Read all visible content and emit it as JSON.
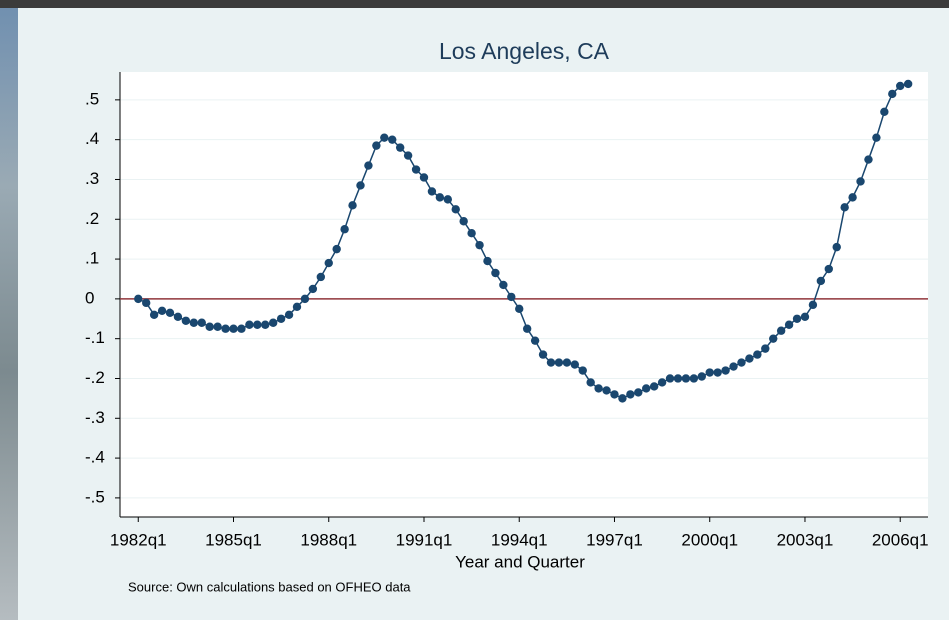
{
  "chart_data": {
    "type": "line",
    "title": "Los Angeles, CA",
    "x_label": "Year and Quarter",
    "note": "Source: Own calculations based on OFHEO data",
    "x": [
      88,
      89,
      90,
      91,
      92,
      93,
      94,
      95,
      96,
      97,
      98,
      99,
      100,
      101,
      102,
      103,
      104,
      105,
      106,
      107,
      108,
      109,
      110,
      111,
      112,
      113,
      114,
      115,
      116,
      117,
      118,
      119,
      120,
      121,
      122,
      123,
      124,
      125,
      126,
      127,
      128,
      129,
      130,
      131,
      132,
      133,
      134,
      135,
      136,
      137,
      138,
      139,
      140,
      141,
      142,
      143,
      144,
      145,
      146,
      147,
      148,
      149,
      150,
      151,
      152,
      153,
      154,
      155,
      156,
      157,
      158,
      159,
      160,
      161,
      162,
      163,
      164,
      165,
      166,
      167,
      168,
      169,
      170,
      171,
      172,
      173,
      174,
      175,
      176,
      177,
      178,
      179,
      180,
      181,
      182,
      183,
      184,
      185
    ],
    "series": [
      {
        "name": "Los Angeles, CA",
        "color": "#1a476f",
        "values": [
          0,
          -0.01,
          -0.04,
          -0.03,
          -0.035,
          -0.045,
          -0.055,
          -0.06,
          -0.06,
          -0.07,
          -0.07,
          -0.075,
          -0.075,
          -0.075,
          -0.065,
          -0.065,
          -0.065,
          -0.06,
          -0.05,
          -0.04,
          -0.02,
          0.0,
          0.025,
          0.055,
          0.09,
          0.125,
          0.175,
          0.235,
          0.285,
          0.335,
          0.385,
          0.405,
          0.4,
          0.38,
          0.36,
          0.325,
          0.305,
          0.27,
          0.255,
          0.25,
          0.225,
          0.195,
          0.165,
          0.135,
          0.095,
          0.065,
          0.035,
          0.005,
          -0.025,
          -0.075,
          -0.105,
          -0.14,
          -0.16,
          -0.16,
          -0.16,
          -0.165,
          -0.18,
          -0.21,
          -0.225,
          -0.23,
          -0.24,
          -0.25,
          -0.24,
          -0.235,
          -0.225,
          -0.22,
          -0.21,
          -0.2,
          -0.2,
          -0.2,
          -0.2,
          -0.195,
          -0.185,
          -0.185,
          -0.18,
          -0.17,
          -0.16,
          -0.15,
          -0.14,
          -0.125,
          -0.1,
          -0.08,
          -0.065,
          -0.05,
          -0.045,
          -0.015,
          0.045,
          0.075,
          0.13,
          0.23,
          0.255,
          0.295,
          0.35,
          0.405,
          0.47,
          0.515,
          0.535,
          0.54
        ]
      }
    ],
    "xlim": [
      85.7,
      187.5
    ],
    "xticks": [
      {
        "value": 88,
        "label": "1982q1"
      },
      {
        "value": 100,
        "label": "1985q1"
      },
      {
        "value": 112,
        "label": "1988q1"
      },
      {
        "value": 124,
        "label": "1991q1"
      },
      {
        "value": 136,
        "label": "1994q1"
      },
      {
        "value": 148,
        "label": "1997q1"
      },
      {
        "value": 160,
        "label": "2000q1"
      },
      {
        "value": 172,
        "label": "2003q1"
      },
      {
        "value": 184,
        "label": "2006q1"
      }
    ],
    "ylim": [
      -0.548,
      0.57
    ],
    "yticks": [
      {
        "value": -0.5,
        "label": "-.5"
      },
      {
        "value": -0.4,
        "label": "-.4"
      },
      {
        "value": -0.3,
        "label": "-.3"
      },
      {
        "value": -0.2,
        "label": "-.2"
      },
      {
        "value": -0.1,
        "label": "-.1"
      },
      0,
      {
        "value": 0.1,
        "label": ".1"
      },
      {
        "value": 0.2,
        "label": ".2"
      },
      {
        "value": 0.3,
        "label": ".3"
      },
      {
        "value": 0.4,
        "label": ".4"
      },
      {
        "value": 0.5,
        "label": ".5"
      }
    ],
    "yline": 0,
    "yline_color": "#90353b",
    "grid": true
  }
}
